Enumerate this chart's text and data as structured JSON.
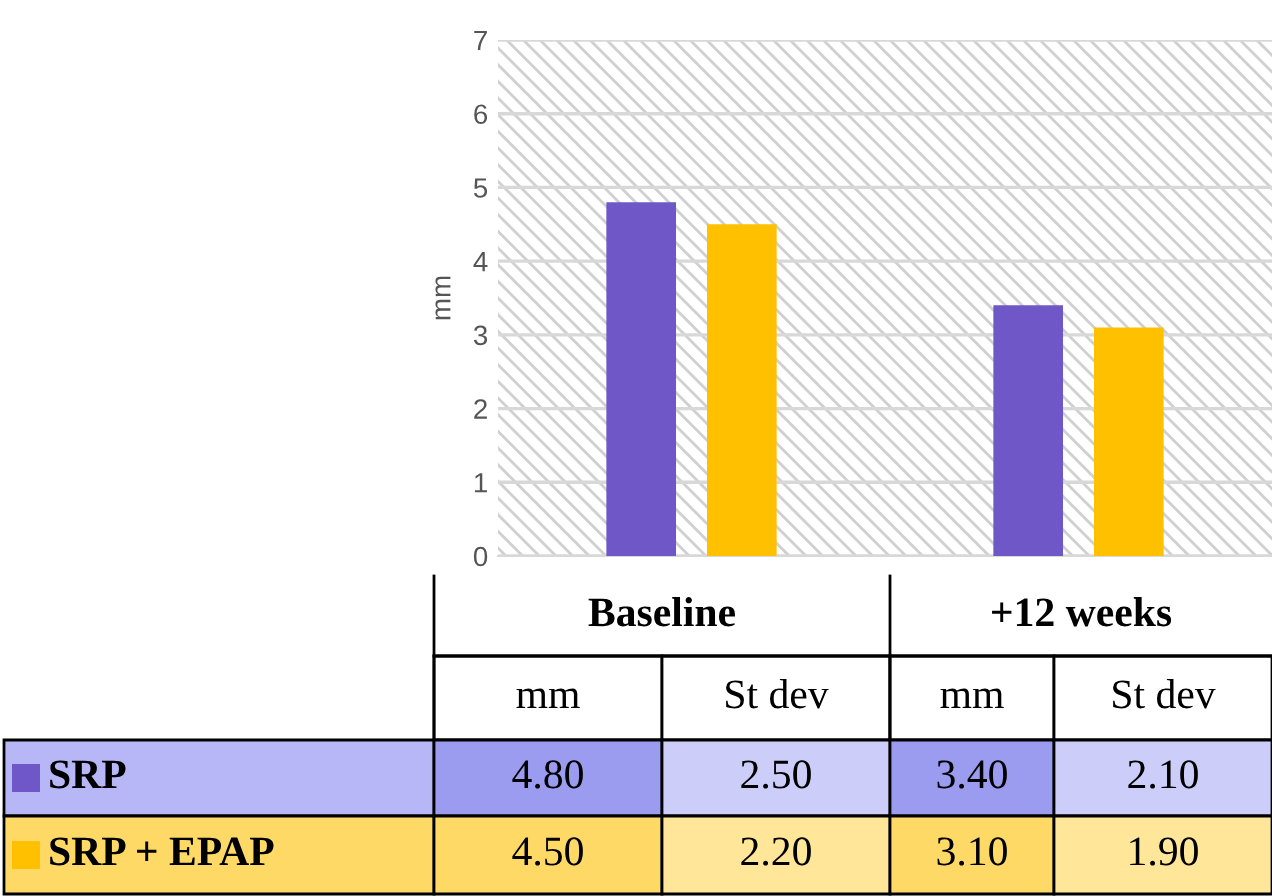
{
  "chart_data": {
    "type": "bar",
    "ylabel": "mm",
    "categories": [
      "Baseline",
      "+12 weeks"
    ],
    "series": [
      {
        "name": "SRP",
        "color": "#6f57c8",
        "values": [
          4.8,
          3.4
        ],
        "value_labels": [
          "4.80",
          "3.40"
        ]
      },
      {
        "name": "SRP + EPAP",
        "color": "#ffc000",
        "values": [
          4.5,
          3.1
        ],
        "value_labels": [
          "4.50",
          "3.10"
        ]
      }
    ],
    "ylim": [
      0,
      7
    ],
    "yticks": [
      0,
      1,
      2,
      3,
      4,
      5,
      6,
      7
    ],
    "grid": "y",
    "legend": "bottom left",
    "tick_labels": "y",
    "annotations": [
      "mm",
      "St dev",
      "2.50",
      "2.10",
      "2.20",
      "1.90"
    ]
  }
}
